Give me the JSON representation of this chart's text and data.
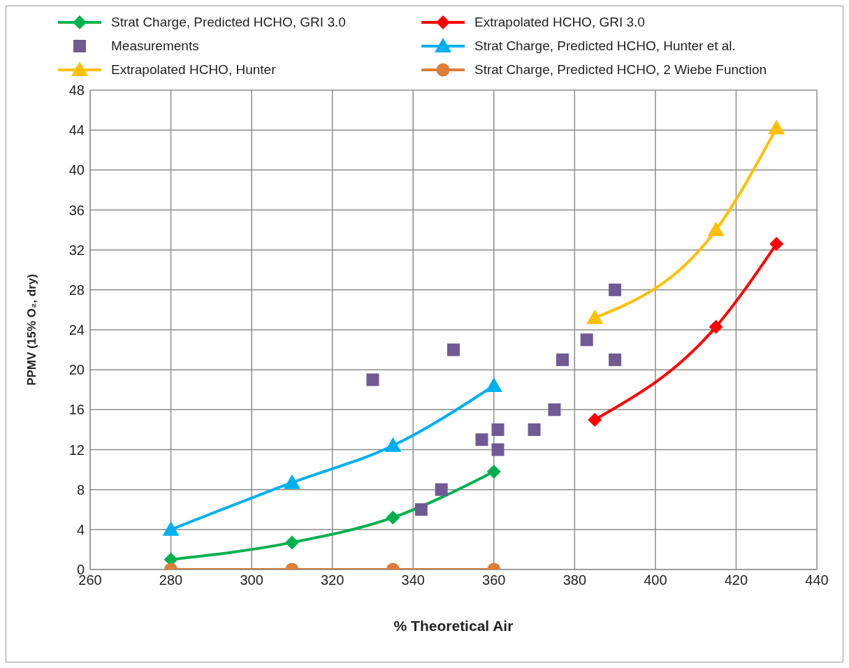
{
  "chart_data": {
    "type": "line",
    "xlabel": "% Theoretical Air",
    "ylabel": "PPMV (15% O₂, dry)",
    "xlim": [
      260,
      440
    ],
    "xticks": [
      260,
      280,
      300,
      320,
      340,
      360,
      380,
      400,
      420,
      440
    ],
    "ylim": [
      0,
      48
    ],
    "yticks": [
      0,
      4,
      8,
      12,
      16,
      20,
      24,
      28,
      32,
      36,
      40,
      44,
      48
    ],
    "grid": true,
    "legend": "top",
    "series": [
      {
        "name": "Strat Charge, Predicted HCHO, GRI 3.0",
        "type": "line",
        "marker": "diamond",
        "color": "#00b050",
        "x": [
          280,
          310,
          335,
          360
        ],
        "values": [
          1,
          2.7,
          5.2,
          9.8
        ]
      },
      {
        "name": "Extrapolated HCHO, GRI 3.0",
        "type": "line",
        "marker": "diamond",
        "color": "#ff0000",
        "x": [
          385,
          415,
          430
        ],
        "values": [
          15,
          24.3,
          32.6
        ]
      },
      {
        "name": "Measurements",
        "type": "scatter",
        "marker": "square",
        "color": "#705a93",
        "x": [
          330,
          350,
          342,
          347,
          357,
          361,
          361,
          370,
          375,
          377,
          383,
          390,
          390
        ],
        "values": [
          19,
          22,
          6,
          8,
          13,
          14,
          12,
          14,
          16,
          21,
          23,
          28,
          21
        ]
      },
      {
        "name": "Strat Charge, Predicted HCHO, Hunter et al.",
        "type": "line",
        "marker": "triangle",
        "color": "#00b0f0",
        "x": [
          280,
          310,
          335,
          360
        ],
        "values": [
          4,
          8.7,
          12.4,
          18.4
        ]
      },
      {
        "name": "Extrapolated HCHO, Hunter",
        "type": "line",
        "marker": "triangle",
        "color": "#ffc000",
        "x": [
          385,
          415,
          430
        ],
        "values": [
          25.2,
          34,
          44.2
        ]
      },
      {
        "name": "Strat Charge, Predicted HCHO, 2 Wiebe Function",
        "type": "line",
        "marker": "circle",
        "color": "#db7f38",
        "x": [
          280,
          310,
          335,
          360
        ],
        "values": [
          0,
          0,
          0,
          0
        ]
      }
    ]
  }
}
